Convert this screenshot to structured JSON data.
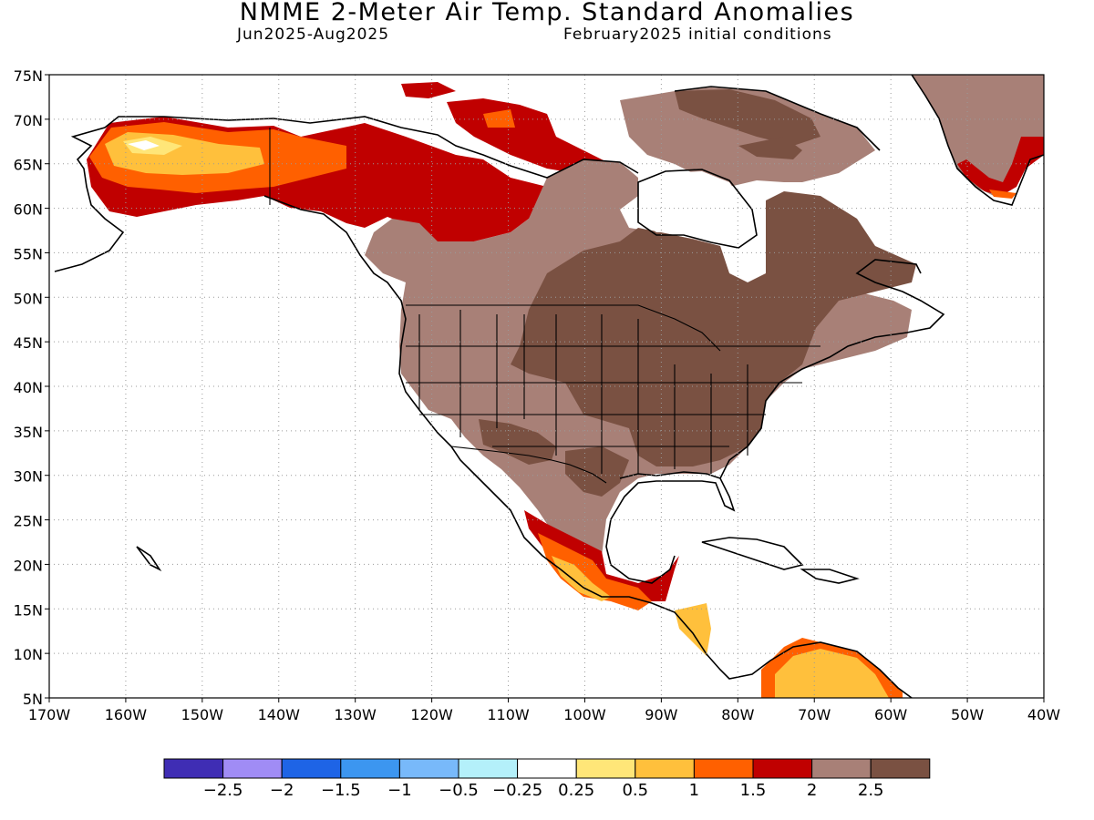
{
  "header": {
    "title": "NMME 2-Meter Air Temp. Standard Anomalies",
    "period": "Jun2025-Aug2025",
    "init": "February2025 initial conditions"
  },
  "map": {
    "lon_range": [
      -170,
      -40
    ],
    "lat_range": [
      5,
      75
    ],
    "grid": "dotted",
    "lat_labels": [
      "75N",
      "70N",
      "65N",
      "60N",
      "55N",
      "50N",
      "45N",
      "40N",
      "35N",
      "30N",
      "25N",
      "20N",
      "15N",
      "10N",
      "5N"
    ],
    "lon_labels": [
      "170W",
      "160W",
      "150W",
      "140W",
      "130W",
      "120W",
      "110W",
      "100W",
      "90W",
      "80W",
      "70W",
      "60W",
      "50W",
      "40W"
    ]
  },
  "legend": {
    "colors": [
      "#3f2db4",
      "#a08cf5",
      "#1e64e6",
      "#3c96f0",
      "#78b9fa",
      "#b4f0fa",
      "#ffffff",
      "#ffe678",
      "#ffc03c",
      "#ff6000",
      "#c00000",
      "#a88077",
      "#7a5142"
    ],
    "labels": [
      "-2.5",
      "-2",
      "-1.5",
      "-1",
      "-0.5",
      "-0.25",
      "0.25",
      "0.5",
      "1",
      "1.5",
      "2",
      "2.5"
    ]
  }
}
